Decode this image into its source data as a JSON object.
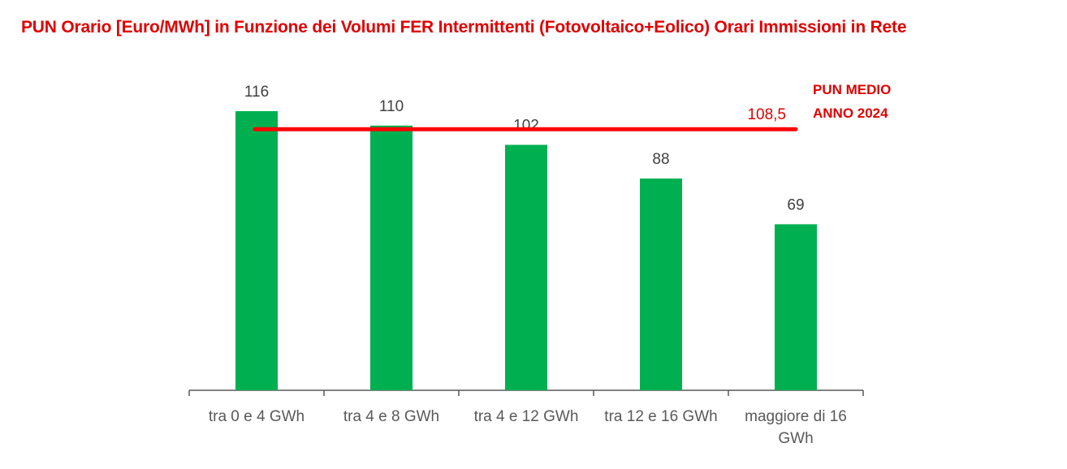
{
  "chart_data": {
    "type": "bar",
    "title": "PUN Orario [Euro/MWh] in Funzione dei Volumi FER Intermittenti (Fotovoltaico+Eolico) Orari Immissioni in Rete",
    "categories": [
      [
        "tra 0 e 4 GWh"
      ],
      [
        "tra 4 e 8 GWh"
      ],
      [
        "tra 4 e 12 GWh"
      ],
      [
        "tra 12 e 16 GWh"
      ],
      [
        "maggiore di 16",
        "GWh"
      ]
    ],
    "values": [
      116,
      110,
      102,
      88,
      69
    ],
    "value_labels": [
      "116",
      "110",
      "102",
      "88",
      "69"
    ],
    "ylim": [
      0,
      116
    ],
    "grid": false,
    "bar_color": "#00b050",
    "reference_line": {
      "value": 108.5,
      "value_label": "108,5",
      "caption": [
        "PUN MEDIO",
        "ANNO 2024"
      ],
      "color": "#ff0000"
    }
  }
}
